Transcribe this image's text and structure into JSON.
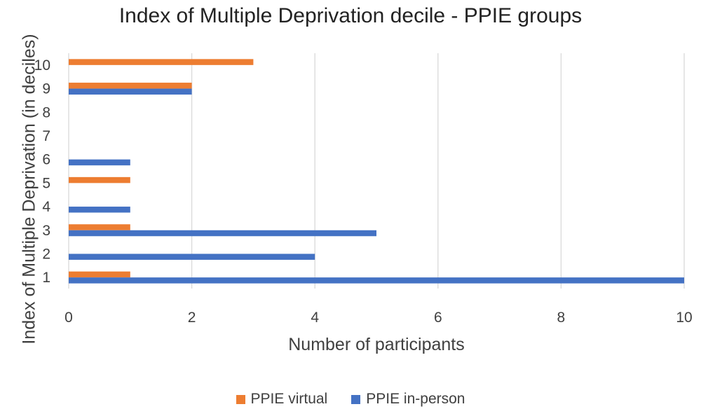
{
  "chart_data": {
    "type": "bar",
    "orientation": "horizontal",
    "title": "Index of Multiple Deprivation decile - PPIE groups",
    "xlabel": "Number of participants",
    "ylabel": "Index of Multiple Deprivation (in deciles)",
    "categories": [
      "1",
      "2",
      "3",
      "4",
      "5",
      "6",
      "7",
      "8",
      "9",
      "10"
    ],
    "xlim": [
      0,
      10
    ],
    "x_ticks": [
      0,
      2,
      4,
      6,
      8,
      10
    ],
    "grid": "vertical",
    "legend_position": "bottom",
    "series": [
      {
        "name": "PPIE virtual",
        "color": "#ED7D31",
        "values": [
          1,
          0,
          1,
          0,
          1,
          0,
          0,
          0,
          2,
          3
        ]
      },
      {
        "name": "PPIE in-person",
        "color": "#4472C4",
        "values": [
          10,
          4,
          5,
          1,
          0,
          1,
          0,
          0,
          2,
          0
        ]
      }
    ]
  }
}
